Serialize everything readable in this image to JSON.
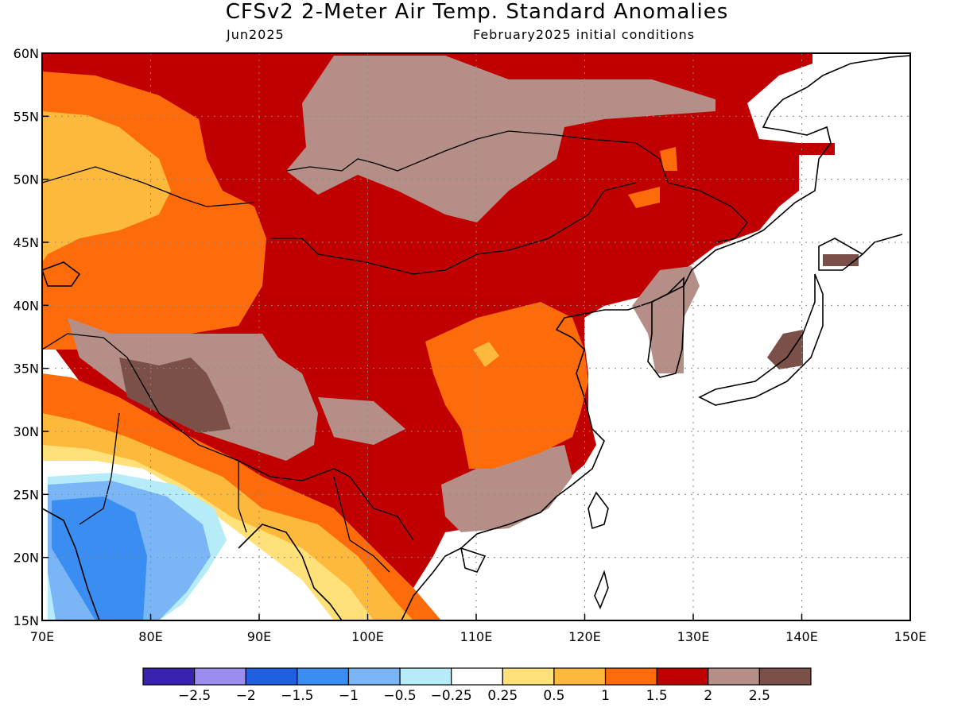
{
  "header": {
    "title": "CFSv2 2-Meter Air Temp. Standard Anomalies",
    "valid_month": "Jun2025",
    "initial_conditions": "February2025 initial conditions"
  },
  "map": {
    "extent": {
      "lon": [
        70,
        150
      ],
      "lat": [
        15,
        60
      ]
    },
    "lat_labels": [
      "60N",
      "55N",
      "50N",
      "45N",
      "40N",
      "35N",
      "30N",
      "25N",
      "20N",
      "15N"
    ],
    "lon_labels": [
      "70E",
      "80E",
      "90E",
      "100E",
      "110E",
      "120E",
      "130E",
      "140E",
      "150E"
    ]
  },
  "colorbar": {
    "colors": [
      "#3a22b0",
      "#9b8cf0",
      "#1f5fe0",
      "#3a8ef2",
      "#7ab6f6",
      "#b6ecf8",
      "#ffffff",
      "#ffe079",
      "#fdb93c",
      "#fd6b0a",
      "#c00000",
      "#b58f87",
      "#7a5048"
    ],
    "labels": [
      "-2.5",
      "-2",
      "-1.5",
      "-1",
      "-0.5",
      "-0.25",
      "0.25",
      "0.5",
      "1",
      "1.5",
      "2",
      "2.5"
    ]
  }
}
